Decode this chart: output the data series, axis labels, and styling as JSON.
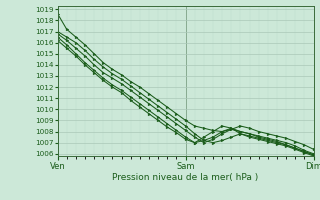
{
  "title": "Pression niveau de la mer( hPa )",
  "bg_color": "#cce8d8",
  "plot_bg_color": "#cce8d8",
  "grid_color_major": "#aac8b8",
  "grid_color_minor": "#bbdacc",
  "line_color": "#1a5c1a",
  "marker_color": "#1a5c1a",
  "spine_color": "#3a6a3a",
  "label_color": "#1a5c1a",
  "ylim_min": 1006,
  "ylim_max": 1019,
  "yticks": [
    1006,
    1007,
    1008,
    1009,
    1010,
    1011,
    1012,
    1013,
    1014,
    1015,
    1016,
    1017,
    1018,
    1019
  ],
  "xtick_labels": [
    "Ven",
    "Sam",
    "Dim"
  ],
  "xtick_positions": [
    0.0,
    0.5,
    1.0
  ],
  "xlabel_fontsize": 6.5,
  "ytick_fontsize": 5.2,
  "xtick_fontsize": 6.0,
  "lines": [
    [
      1018.6,
      1017.2,
      1016.5,
      1015.8,
      1015.0,
      1014.2,
      1013.6,
      1013.1,
      1012.5,
      1012.0,
      1011.4,
      1010.8,
      1010.2,
      1009.6,
      1009.0,
      1008.5,
      1008.3,
      1008.1,
      1008.0,
      1008.2,
      1008.0,
      1007.8,
      1007.5,
      1007.3,
      1007.1,
      1006.8,
      1006.5,
      1006.2,
      1005.9
    ],
    [
      1017.0,
      1016.5,
      1016.0,
      1015.3,
      1014.5,
      1013.8,
      1013.2,
      1012.7,
      1012.1,
      1011.5,
      1010.9,
      1010.3,
      1009.7,
      1009.1,
      1008.5,
      1007.8,
      1007.2,
      1007.0,
      1007.2,
      1007.5,
      1007.8,
      1007.6,
      1007.4,
      1007.2,
      1007.0,
      1006.8,
      1006.5,
      1006.2,
      1005.9
    ],
    [
      1016.8,
      1016.2,
      1015.5,
      1014.8,
      1014.0,
      1013.3,
      1012.8,
      1012.3,
      1011.7,
      1011.1,
      1010.5,
      1009.9,
      1009.3,
      1008.7,
      1008.1,
      1007.5,
      1007.0,
      1007.3,
      1007.8,
      1008.2,
      1008.5,
      1008.3,
      1008.0,
      1007.8,
      1007.6,
      1007.4,
      1007.1,
      1006.8,
      1006.4
    ],
    [
      1016.5,
      1015.8,
      1015.0,
      1014.2,
      1013.5,
      1012.8,
      1012.2,
      1011.7,
      1011.1,
      1010.5,
      1009.9,
      1009.3,
      1008.7,
      1008.1,
      1007.5,
      1007.0,
      1007.2,
      1007.5,
      1008.0,
      1008.3,
      1008.0,
      1007.8,
      1007.6,
      1007.4,
      1007.2,
      1007.0,
      1006.7,
      1006.3,
      1006.0
    ],
    [
      1016.2,
      1015.5,
      1014.8,
      1014.0,
      1013.3,
      1012.6,
      1012.0,
      1011.5,
      1010.8,
      1010.2,
      1009.6,
      1009.0,
      1008.4,
      1007.9,
      1007.3,
      1007.0,
      1007.5,
      1008.0,
      1008.5,
      1008.3,
      1007.8,
      1007.5,
      1007.3,
      1007.1,
      1006.9,
      1006.7,
      1006.4,
      1006.1,
      1005.8
    ]
  ]
}
